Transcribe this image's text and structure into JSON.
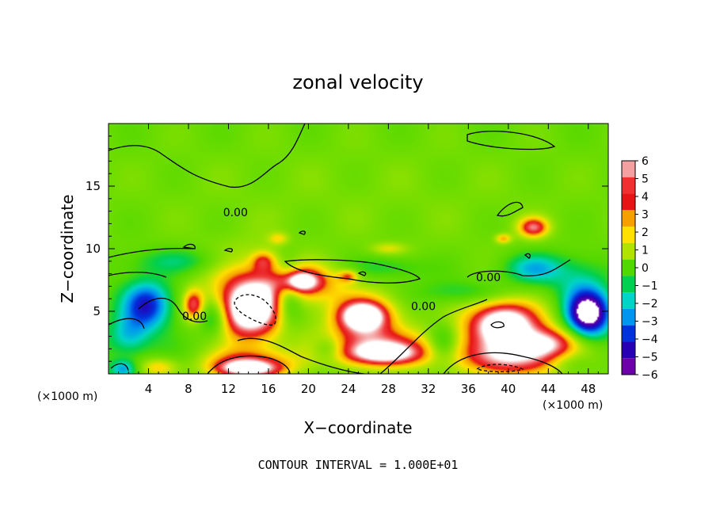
{
  "chart_data": {
    "type": "heatmap",
    "title": "zonal velocity",
    "xlabel": "X−coordinate",
    "ylabel": "Z−coordinate",
    "x_unit_left": "(×1000 m)",
    "x_unit_right": "(×1000 m)",
    "xlim": [
      0,
      50
    ],
    "ylim": [
      0,
      20
    ],
    "xticks": [
      4,
      8,
      12,
      16,
      20,
      24,
      28,
      32,
      36,
      40,
      44,
      48
    ],
    "yticks": [
      5,
      10,
      15
    ],
    "footer": "CONTOUR INTERVAL = 1.000E+01",
    "contour_labels": [
      {
        "text": "0.00",
        "x": 12.7,
        "z": 12.6
      },
      {
        "text": "0.00",
        "x": 8.6,
        "z": 4.3
      },
      {
        "text": "0.00",
        "x": 31.5,
        "z": 5.1
      },
      {
        "text": "0.00",
        "x": 38.0,
        "z": 7.4
      }
    ],
    "colorbar": {
      "levels": [
        6,
        5,
        4,
        3,
        2,
        1,
        0,
        -1,
        -2,
        -3,
        -4,
        -5,
        -6
      ],
      "colors": [
        "#f4a0a0",
        "#f03030",
        "#e61414",
        "#f5a000",
        "#ffe000",
        "#b0e400",
        "#50d800",
        "#00d050",
        "#00d4c8",
        "#0096f0",
        "#0032dc",
        "#2800b4",
        "#6e00aa"
      ]
    },
    "blobs": [
      {
        "x": 10,
        "z": 2,
        "rx": 18,
        "rz": 6,
        "v": -0.5
      },
      {
        "x": 25,
        "z": 14,
        "rx": 30,
        "rz": 6,
        "v": 0.5
      },
      {
        "x": 36,
        "z": 6.5,
        "rx": 5,
        "rz": 1,
        "v": -1.6
      },
      {
        "x": 28,
        "z": 8.5,
        "rx": 4,
        "rz": 0.9,
        "v": -1.4
      },
      {
        "x": 7,
        "z": 9,
        "rx": 5,
        "rz": 1,
        "v": -1.6
      },
      {
        "x": 42.5,
        "z": 8.4,
        "rx": 3,
        "rz": 1.2,
        "v": -3.0
      },
      {
        "x": 47,
        "z": 7.5,
        "rx": 3,
        "rz": 2,
        "v": -1.8
      },
      {
        "x": 3.8,
        "z": 5.5,
        "rx": 2.4,
        "rz": 1.9,
        "v": -4.8
      },
      {
        "x": 10.5,
        "z": 4.5,
        "rx": 1.5,
        "rz": 1.5,
        "v": -3.0
      },
      {
        "x": 18,
        "z": 6.5,
        "rx": 1.4,
        "rz": 2.4,
        "v": -3.6
      },
      {
        "x": 48,
        "z": 4.8,
        "rx": 2.2,
        "rz": 1.8,
        "v": -8.0
      },
      {
        "x": 2,
        "z": 3,
        "rx": 2,
        "rz": 1.5,
        "v": -2.2
      },
      {
        "x": 1.5,
        "z": 0.4,
        "rx": 1.3,
        "rz": 0.7,
        "v": -3.0
      },
      {
        "x": 14,
        "z": 5.5,
        "rx": 4.5,
        "rz": 3.5,
        "v": 5.0
      },
      {
        "x": 14.2,
        "z": 5.2,
        "rx": 2.6,
        "rz": 2.0,
        "v": 5.0
      },
      {
        "x": 19.5,
        "z": 7.3,
        "rx": 4,
        "rz": 1.5,
        "v": 4.0
      },
      {
        "x": 19,
        "z": 7.4,
        "rx": 1.8,
        "rz": 0.8,
        "v": 5.0
      },
      {
        "x": 25.5,
        "z": 4.6,
        "rx": 3.6,
        "rz": 1.9,
        "v": 5.0
      },
      {
        "x": 25.5,
        "z": 4.6,
        "rx": 2.0,
        "rz": 1.0,
        "v": 5.0
      },
      {
        "x": 27,
        "z": 2,
        "rx": 6,
        "rz": 1.6,
        "v": 5.0
      },
      {
        "x": 27.5,
        "z": 1.6,
        "rx": 3.5,
        "rz": 0.8,
        "v": 4.0
      },
      {
        "x": 14,
        "z": 0.7,
        "rx": 4.5,
        "rz": 1.2,
        "v": 5.0
      },
      {
        "x": 14,
        "z": 0.4,
        "rx": 3,
        "rz": 0.6,
        "v": 4.0
      },
      {
        "x": 39.5,
        "z": 3.8,
        "rx": 4.5,
        "rz": 2.4,
        "v": 5.0
      },
      {
        "x": 39.5,
        "z": 4.0,
        "rx": 2.8,
        "rz": 1.4,
        "v": 4.0
      },
      {
        "x": 41,
        "z": 1.2,
        "rx": 6,
        "rz": 1.5,
        "v": 5.0
      },
      {
        "x": 44,
        "z": 2.5,
        "rx": 3,
        "rz": 1.2,
        "v": 4.0
      },
      {
        "x": 8.5,
        "z": 5.5,
        "rx": 1.0,
        "rz": 1.2,
        "v": 4.5
      },
      {
        "x": 15.5,
        "z": 9.0,
        "rx": 1.2,
        "rz": 0.8,
        "v": 3.0
      },
      {
        "x": 17,
        "z": 10.8,
        "rx": 1.0,
        "rz": 0.5,
        "v": 2.0
      },
      {
        "x": 28,
        "z": 10.0,
        "rx": 1.8,
        "rz": 0.5,
        "v": 1.8
      },
      {
        "x": 24,
        "z": 7.8,
        "rx": 1.0,
        "rz": 0.5,
        "v": 3.2
      },
      {
        "x": 42.5,
        "z": 11.7,
        "rx": 1.5,
        "rz": 0.8,
        "v": 5.0
      },
      {
        "x": 39.5,
        "z": 10.8,
        "rx": 0.8,
        "rz": 0.4,
        "v": 3.0
      },
      {
        "x": 46,
        "z": 1.0,
        "rx": 2.5,
        "rz": 1.0,
        "v": -2.0
      },
      {
        "x": 33.5,
        "z": 2.5,
        "rx": 1.5,
        "rz": 1.5,
        "v": -2.5
      },
      {
        "x": 22,
        "z": 2.0,
        "rx": 1.5,
        "rz": 1.0,
        "v": -2.0
      },
      {
        "x": 5,
        "z": 0.5,
        "rx": 2,
        "rz": 0.8,
        "v": 3.0
      }
    ]
  }
}
